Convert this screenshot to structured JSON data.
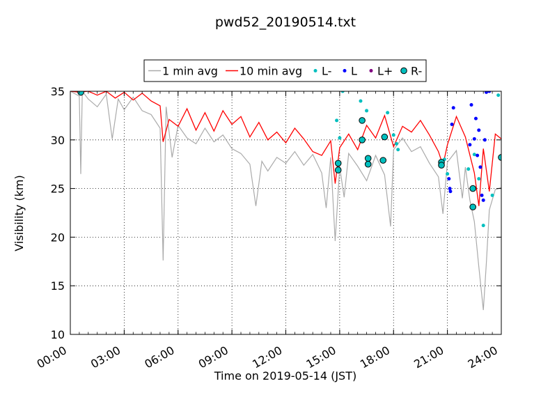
{
  "chart_data": {
    "type": "line",
    "title": "pwd52_20190514.txt",
    "xlabel": "Time on 2019-05-14 (JST)",
    "ylabel": "Visibility (km)",
    "xlim": [
      "00:00",
      "24:00"
    ],
    "ylim": [
      10,
      35
    ],
    "x_ticks": [
      "00:00",
      "03:00",
      "06:00",
      "09:00",
      "12:00",
      "15:00",
      "18:00",
      "21:00",
      "24:00"
    ],
    "y_ticks": [
      10,
      15,
      20,
      25,
      30,
      35
    ],
    "grid": "dotted",
    "legend_position": "top-center",
    "series": [
      {
        "name": "1 min avg",
        "kind": "line",
        "color": "#aaaaaa",
        "points": [
          [
            "00:00",
            35
          ],
          [
            "00:30",
            34.5
          ],
          [
            "00:35",
            26.5
          ],
          [
            "00:40",
            35
          ],
          [
            "01:00",
            34.2
          ],
          [
            "01:30",
            33.4
          ],
          [
            "02:00",
            34.7
          ],
          [
            "02:20",
            30.1
          ],
          [
            "02:40",
            34.2
          ],
          [
            "03:00",
            33.1
          ],
          [
            "03:30",
            34.4
          ],
          [
            "04:00",
            33.0
          ],
          [
            "04:30",
            32.6
          ],
          [
            "05:00",
            31.2
          ],
          [
            "05:10",
            17.6
          ],
          [
            "05:20",
            33.4
          ],
          [
            "05:40",
            28.2
          ],
          [
            "06:00",
            31.5
          ],
          [
            "06:30",
            30.2
          ],
          [
            "07:00",
            29.6
          ],
          [
            "07:30",
            31.2
          ],
          [
            "08:00",
            29.8
          ],
          [
            "08:30",
            30.5
          ],
          [
            "09:00",
            29.1
          ],
          [
            "09:30",
            28.6
          ],
          [
            "10:00",
            27.5
          ],
          [
            "10:20",
            23.2
          ],
          [
            "10:40",
            27.8
          ],
          [
            "11:00",
            26.8
          ],
          [
            "11:30",
            28.2
          ],
          [
            "12:00",
            27.6
          ],
          [
            "12:30",
            28.8
          ],
          [
            "13:00",
            27.4
          ],
          [
            "13:30",
            28.5
          ],
          [
            "14:00",
            26.6
          ],
          [
            "14:15",
            23.0
          ],
          [
            "14:30",
            28.2
          ],
          [
            "14:45",
            19.6
          ],
          [
            "15:00",
            27.2
          ],
          [
            "15:15",
            24.1
          ],
          [
            "15:30",
            28.6
          ],
          [
            "16:00",
            27.3
          ],
          [
            "16:30",
            25.8
          ],
          [
            "17:00",
            28.4
          ],
          [
            "17:30",
            26.4
          ],
          [
            "17:50",
            21.1
          ],
          [
            "18:00",
            29.0
          ],
          [
            "18:30",
            30.2
          ],
          [
            "19:00",
            28.8
          ],
          [
            "19:30",
            29.3
          ],
          [
            "20:00",
            27.6
          ],
          [
            "20:30",
            26.2
          ],
          [
            "20:45",
            22.4
          ],
          [
            "21:00",
            27.7
          ],
          [
            "21:30",
            28.9
          ],
          [
            "21:50",
            24.0
          ],
          [
            "22:00",
            27.2
          ],
          [
            "22:15",
            23.8
          ],
          [
            "22:30",
            21.6
          ],
          [
            "22:45",
            16.9
          ],
          [
            "23:00",
            12.5
          ],
          [
            "23:10",
            17.3
          ],
          [
            "23:20",
            22.8
          ],
          [
            "23:40",
            24.9
          ],
          [
            "24:00",
            25.1
          ]
        ]
      },
      {
        "name": "10 min avg",
        "kind": "line",
        "color": "#ff0000",
        "points": [
          [
            "00:00",
            35
          ],
          [
            "00:30",
            34.9
          ],
          [
            "01:00",
            35
          ],
          [
            "01:30",
            34.6
          ],
          [
            "02:00",
            35
          ],
          [
            "02:30",
            34.3
          ],
          [
            "03:00",
            34.9
          ],
          [
            "03:30",
            34.1
          ],
          [
            "04:00",
            34.8
          ],
          [
            "04:30",
            34.0
          ],
          [
            "05:00",
            33.5
          ],
          [
            "05:10",
            29.8
          ],
          [
            "05:30",
            32.1
          ],
          [
            "06:00",
            31.4
          ],
          [
            "06:30",
            33.2
          ],
          [
            "07:00",
            31.0
          ],
          [
            "07:30",
            32.8
          ],
          [
            "08:00",
            30.9
          ],
          [
            "08:30",
            33.0
          ],
          [
            "09:00",
            31.6
          ],
          [
            "09:30",
            32.4
          ],
          [
            "10:00",
            30.3
          ],
          [
            "10:30",
            31.8
          ],
          [
            "11:00",
            30.0
          ],
          [
            "11:30",
            30.8
          ],
          [
            "12:00",
            29.7
          ],
          [
            "12:30",
            31.2
          ],
          [
            "13:00",
            30.1
          ],
          [
            "13:30",
            28.8
          ],
          [
            "14:00",
            28.4
          ],
          [
            "14:30",
            29.9
          ],
          [
            "14:45",
            25.5
          ],
          [
            "15:00",
            29.2
          ],
          [
            "15:30",
            30.6
          ],
          [
            "16:00",
            29.0
          ],
          [
            "16:30",
            31.5
          ],
          [
            "17:00",
            30.2
          ],
          [
            "17:30",
            32.5
          ],
          [
            "18:00",
            29.3
          ],
          [
            "18:30",
            31.4
          ],
          [
            "19:00",
            30.8
          ],
          [
            "19:30",
            32.0
          ],
          [
            "20:00",
            30.5
          ],
          [
            "20:30",
            28.8
          ],
          [
            "20:45",
            27.4
          ],
          [
            "21:00",
            29.5
          ],
          [
            "21:30",
            32.4
          ],
          [
            "22:00",
            30.3
          ],
          [
            "22:30",
            26.6
          ],
          [
            "22:45",
            23.2
          ],
          [
            "23:00",
            29.1
          ],
          [
            "23:20",
            24.7
          ],
          [
            "23:40",
            30.6
          ],
          [
            "24:00",
            30.1
          ]
        ]
      },
      {
        "name": "L-",
        "kind": "points",
        "color": "#00bfbf",
        "points": [
          [
            "14:50",
            32.0
          ],
          [
            "15:00",
            30.2
          ],
          [
            "15:10",
            35
          ],
          [
            "16:10",
            34.0
          ],
          [
            "16:30",
            33.0
          ],
          [
            "17:40",
            32.8
          ],
          [
            "18:00",
            30.5
          ],
          [
            "18:10",
            29.6
          ],
          [
            "18:15",
            29.0
          ],
          [
            "20:50",
            28.0
          ],
          [
            "21:00",
            26.5
          ],
          [
            "22:10",
            27.0
          ],
          [
            "22:30",
            28.5
          ],
          [
            "22:45",
            26.0
          ],
          [
            "23:00",
            21.2
          ],
          [
            "23:30",
            24.3
          ],
          [
            "23:50",
            34.6
          ]
        ]
      },
      {
        "name": "L",
        "kind": "points",
        "color": "#0000ff",
        "points": [
          [
            "21:05",
            26.0
          ],
          [
            "21:08",
            25.0
          ],
          [
            "21:10",
            24.7
          ],
          [
            "21:15",
            31.6
          ],
          [
            "21:20",
            33.3
          ],
          [
            "22:15",
            29.5
          ],
          [
            "22:20",
            33.6
          ],
          [
            "22:30",
            30.1
          ],
          [
            "22:35",
            32.2
          ],
          [
            "22:40",
            28.4
          ],
          [
            "22:45",
            31.0
          ],
          [
            "22:50",
            27.2
          ],
          [
            "22:55",
            24.3
          ],
          [
            "23:00",
            23.8
          ],
          [
            "23:05",
            30.0
          ],
          [
            "23:10",
            34.9
          ],
          [
            "23:20",
            35
          ]
        ]
      },
      {
        "name": "L+",
        "kind": "points",
        "color": "#800080",
        "points": []
      },
      {
        "name": "R-",
        "kind": "markers",
        "color": "#00bfbf",
        "points": [
          [
            "00:35",
            34.9
          ],
          [
            "14:55",
            27.6
          ],
          [
            "14:55",
            26.9
          ],
          [
            "16:15",
            32.0
          ],
          [
            "16:15",
            30.0
          ],
          [
            "16:35",
            28.1
          ],
          [
            "16:35",
            27.5
          ],
          [
            "17:30",
            30.3
          ],
          [
            "17:25",
            27.9
          ],
          [
            "20:40",
            27.7
          ],
          [
            "20:40",
            27.4
          ],
          [
            "22:25",
            25.0
          ],
          [
            "22:25",
            23.1
          ],
          [
            "24:00",
            28.2
          ]
        ]
      }
    ]
  }
}
